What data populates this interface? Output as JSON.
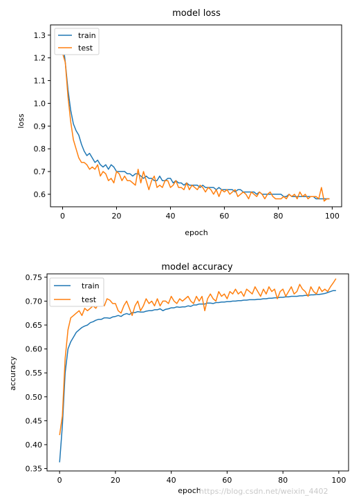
{
  "chart_data": [
    {
      "type": "line",
      "title": "model loss",
      "xlabel": "epoch",
      "ylabel": "loss",
      "xlim": [
        -4.5,
        103.5
      ],
      "ylim": [
        0.545,
        1.345
      ],
      "xticks": [
        0,
        20,
        40,
        60,
        80,
        100
      ],
      "yticks": [
        0.6,
        0.7,
        0.8,
        0.9,
        1.0,
        1.1,
        1.2,
        1.3
      ],
      "ytick_labels": [
        "0.6",
        "0.7",
        "0.8",
        "0.9",
        "1.0",
        "1.1",
        "1.2",
        "1.3"
      ],
      "legend": "upper left",
      "grid": false,
      "series": [
        {
          "name": "train",
          "color": "#1f77b4",
          "x": [
            0,
            1,
            2,
            3,
            4,
            5,
            6,
            7,
            8,
            9,
            10,
            11,
            12,
            13,
            14,
            15,
            16,
            17,
            18,
            19,
            20,
            21,
            22,
            23,
            24,
            25,
            26,
            27,
            28,
            29,
            30,
            31,
            32,
            33,
            34,
            35,
            36,
            37,
            38,
            39,
            40,
            41,
            42,
            43,
            44,
            45,
            46,
            47,
            48,
            49,
            50,
            51,
            52,
            53,
            54,
            55,
            56,
            57,
            58,
            59,
            60,
            61,
            62,
            63,
            64,
            65,
            66,
            67,
            68,
            69,
            70,
            71,
            72,
            73,
            74,
            75,
            76,
            77,
            78,
            79,
            80,
            81,
            82,
            83,
            84,
            85,
            86,
            87,
            88,
            89,
            90,
            91,
            92,
            93,
            94,
            95,
            96,
            97,
            98,
            99
          ],
          "y": [
            1.28,
            1.18,
            1.06,
            0.97,
            0.91,
            0.88,
            0.86,
            0.82,
            0.79,
            0.77,
            0.78,
            0.76,
            0.74,
            0.75,
            0.73,
            0.72,
            0.73,
            0.71,
            0.73,
            0.72,
            0.7,
            0.7,
            0.7,
            0.7,
            0.69,
            0.69,
            0.68,
            0.69,
            0.69,
            0.68,
            0.67,
            0.68,
            0.67,
            0.67,
            0.66,
            0.66,
            0.68,
            0.66,
            0.66,
            0.67,
            0.67,
            0.65,
            0.66,
            0.65,
            0.65,
            0.64,
            0.65,
            0.64,
            0.64,
            0.64,
            0.64,
            0.63,
            0.64,
            0.63,
            0.63,
            0.63,
            0.63,
            0.62,
            0.63,
            0.62,
            0.62,
            0.62,
            0.62,
            0.62,
            0.61,
            0.62,
            0.62,
            0.61,
            0.61,
            0.61,
            0.61,
            0.61,
            0.6,
            0.61,
            0.6,
            0.6,
            0.6,
            0.6,
            0.6,
            0.6,
            0.6,
            0.6,
            0.59,
            0.59,
            0.6,
            0.59,
            0.59,
            0.59,
            0.59,
            0.59,
            0.59,
            0.59,
            0.59,
            0.59,
            0.58,
            0.58,
            0.58,
            0.58,
            0.58,
            0.58
          ]
        },
        {
          "name": "test",
          "color": "#ff7f0e",
          "x": [
            0,
            1,
            2,
            3,
            4,
            5,
            6,
            7,
            8,
            9,
            10,
            11,
            12,
            13,
            14,
            15,
            16,
            17,
            18,
            19,
            20,
            21,
            22,
            23,
            24,
            25,
            26,
            27,
            28,
            29,
            30,
            31,
            32,
            33,
            34,
            35,
            36,
            37,
            38,
            39,
            40,
            41,
            42,
            43,
            44,
            45,
            46,
            47,
            48,
            49,
            50,
            51,
            52,
            53,
            54,
            55,
            56,
            57,
            58,
            59,
            60,
            61,
            62,
            63,
            64,
            65,
            66,
            67,
            68,
            69,
            70,
            71,
            72,
            73,
            74,
            75,
            76,
            77,
            78,
            79,
            80,
            81,
            82,
            83,
            84,
            85,
            86,
            87,
            88,
            89,
            90,
            91,
            92,
            93,
            94,
            95,
            96,
            97,
            98,
            99
          ],
          "y": [
            1.22,
            1.18,
            1.03,
            0.92,
            0.84,
            0.8,
            0.76,
            0.74,
            0.74,
            0.73,
            0.71,
            0.72,
            0.71,
            0.73,
            0.68,
            0.7,
            0.69,
            0.66,
            0.67,
            0.65,
            0.7,
            0.69,
            0.66,
            0.68,
            0.66,
            0.66,
            0.65,
            0.64,
            0.71,
            0.65,
            0.7,
            0.66,
            0.62,
            0.66,
            0.68,
            0.63,
            0.64,
            0.63,
            0.66,
            0.66,
            0.63,
            0.64,
            0.66,
            0.63,
            0.63,
            0.62,
            0.65,
            0.62,
            0.64,
            0.63,
            0.62,
            0.64,
            0.63,
            0.61,
            0.63,
            0.62,
            0.6,
            0.62,
            0.59,
            0.62,
            0.61,
            0.62,
            0.6,
            0.61,
            0.62,
            0.59,
            0.6,
            0.61,
            0.6,
            0.58,
            0.61,
            0.6,
            0.59,
            0.61,
            0.6,
            0.58,
            0.6,
            0.61,
            0.59,
            0.58,
            0.58,
            0.58,
            0.59,
            0.58,
            0.6,
            0.59,
            0.6,
            0.58,
            0.61,
            0.59,
            0.6,
            0.58,
            0.59,
            0.59,
            0.59,
            0.58,
            0.63,
            0.57,
            0.58,
            0.58
          ]
        }
      ]
    },
    {
      "type": "line",
      "title": "model accuracy",
      "xlabel": "epoch",
      "ylabel": "accuracy",
      "xlim": [
        -4.5,
        103.5
      ],
      "ylim": [
        0.345,
        0.757
      ],
      "xticks": [
        0,
        20,
        40,
        60,
        80,
        100
      ],
      "yticks": [
        0.35,
        0.4,
        0.45,
        0.5,
        0.55,
        0.6,
        0.65,
        0.7,
        0.75
      ],
      "ytick_labels": [
        "0.35",
        "0.40",
        "0.45",
        "0.50",
        "0.55",
        "0.60",
        "0.65",
        "0.70",
        "0.75"
      ],
      "legend": "upper left",
      "grid": false,
      "series": [
        {
          "name": "train",
          "color": "#1f77b4",
          "x": [
            0,
            1,
            2,
            3,
            4,
            5,
            6,
            7,
            8,
            9,
            10,
            11,
            12,
            13,
            14,
            15,
            16,
            17,
            18,
            19,
            20,
            21,
            22,
            23,
            24,
            25,
            26,
            27,
            28,
            29,
            30,
            31,
            32,
            33,
            34,
            35,
            36,
            37,
            38,
            39,
            40,
            41,
            42,
            43,
            44,
            45,
            46,
            47,
            48,
            49,
            50,
            51,
            52,
            53,
            54,
            55,
            56,
            57,
            58,
            59,
            60,
            61,
            62,
            63,
            64,
            65,
            66,
            67,
            68,
            69,
            70,
            71,
            72,
            73,
            74,
            75,
            76,
            77,
            78,
            79,
            80,
            81,
            82,
            83,
            84,
            85,
            86,
            87,
            88,
            89,
            90,
            91,
            92,
            93,
            94,
            95,
            96,
            97,
            98,
            99
          ],
          "y": [
            0.363,
            0.44,
            0.55,
            0.6,
            0.615,
            0.625,
            0.635,
            0.64,
            0.645,
            0.648,
            0.65,
            0.655,
            0.657,
            0.66,
            0.662,
            0.662,
            0.665,
            0.665,
            0.664,
            0.667,
            0.668,
            0.67,
            0.668,
            0.672,
            0.674,
            0.672,
            0.676,
            0.676,
            0.678,
            0.677,
            0.677,
            0.679,
            0.68,
            0.68,
            0.682,
            0.682,
            0.684,
            0.68,
            0.683,
            0.684,
            0.686,
            0.686,
            0.688,
            0.687,
            0.688,
            0.688,
            0.69,
            0.689,
            0.692,
            0.692,
            0.694,
            0.694,
            0.694,
            0.696,
            0.696,
            0.695,
            0.697,
            0.697,
            0.698,
            0.698,
            0.699,
            0.699,
            0.7,
            0.7,
            0.701,
            0.701,
            0.702,
            0.702,
            0.703,
            0.703,
            0.703,
            0.704,
            0.704,
            0.705,
            0.705,
            0.706,
            0.706,
            0.707,
            0.707,
            0.708,
            0.708,
            0.709,
            0.709,
            0.71,
            0.71,
            0.71,
            0.711,
            0.711,
            0.712,
            0.712,
            0.713,
            0.713,
            0.714,
            0.714,
            0.715,
            0.716,
            0.718,
            0.72,
            0.722,
            0.722
          ]
        },
        {
          "name": "test",
          "color": "#ff7f0e",
          "x": [
            0,
            1,
            2,
            3,
            4,
            5,
            6,
            7,
            8,
            9,
            10,
            11,
            12,
            13,
            14,
            15,
            16,
            17,
            18,
            19,
            20,
            21,
            22,
            23,
            24,
            25,
            26,
            27,
            28,
            29,
            30,
            31,
            32,
            33,
            34,
            35,
            36,
            37,
            38,
            39,
            40,
            41,
            42,
            43,
            44,
            45,
            46,
            47,
            48,
            49,
            50,
            51,
            52,
            53,
            54,
            55,
            56,
            57,
            58,
            59,
            60,
            61,
            62,
            63,
            64,
            65,
            66,
            67,
            68,
            69,
            70,
            71,
            72,
            73,
            74,
            75,
            76,
            77,
            78,
            79,
            80,
            81,
            82,
            83,
            84,
            85,
            86,
            87,
            88,
            89,
            90,
            91,
            92,
            93,
            94,
            95,
            96,
            97,
            98,
            99
          ],
          "y": [
            0.42,
            0.46,
            0.58,
            0.64,
            0.665,
            0.67,
            0.675,
            0.68,
            0.67,
            0.685,
            0.68,
            0.685,
            0.69,
            0.685,
            0.695,
            0.7,
            0.69,
            0.705,
            0.702,
            0.695,
            0.695,
            0.68,
            0.675,
            0.69,
            0.7,
            0.685,
            0.67,
            0.69,
            0.7,
            0.68,
            0.69,
            0.705,
            0.695,
            0.7,
            0.69,
            0.705,
            0.69,
            0.7,
            0.7,
            0.695,
            0.71,
            0.7,
            0.695,
            0.705,
            0.7,
            0.705,
            0.71,
            0.7,
            0.695,
            0.71,
            0.7,
            0.71,
            0.68,
            0.705,
            0.715,
            0.705,
            0.7,
            0.72,
            0.71,
            0.715,
            0.705,
            0.72,
            0.715,
            0.725,
            0.715,
            0.72,
            0.71,
            0.725,
            0.72,
            0.715,
            0.73,
            0.72,
            0.71,
            0.725,
            0.715,
            0.73,
            0.72,
            0.725,
            0.705,
            0.72,
            0.725,
            0.71,
            0.72,
            0.73,
            0.715,
            0.72,
            0.735,
            0.725,
            0.72,
            0.71,
            0.73,
            0.72,
            0.715,
            0.73,
            0.72,
            0.725,
            0.72,
            0.73,
            0.738,
            0.747
          ]
        }
      ]
    }
  ],
  "watermark": "https://blog.csdn.net/weixin_4402"
}
